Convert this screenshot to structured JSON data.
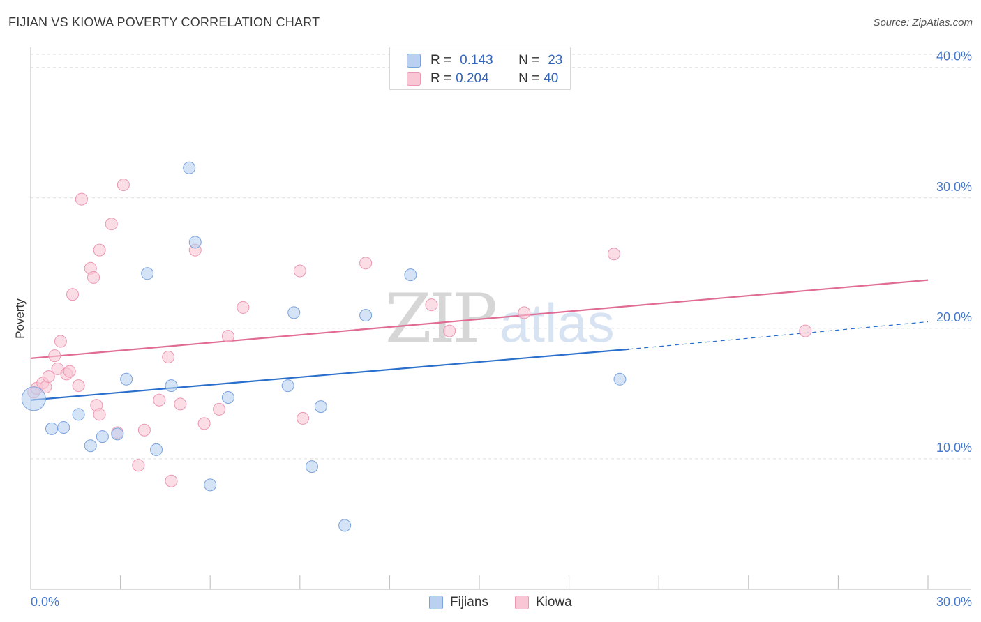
{
  "header": {
    "title": "FIJIAN VS KIOWA POVERTY CORRELATION CHART",
    "source": "Source: ZipAtlas.com"
  },
  "legend": {
    "rows": [
      {
        "r_label": "R =",
        "r_value": "0.143",
        "n_label": "N =",
        "n_value": "23"
      },
      {
        "r_label": "R =",
        "r_value": "0.204",
        "n_label": "N =",
        "n_value": "40"
      }
    ],
    "bottom": [
      "Fijians",
      "Kiowa"
    ]
  },
  "colors": {
    "fijians_fill": "#b9d0f0",
    "fijians_stroke": "#7aa3dd",
    "fijians_line": "#2a6fcc",
    "kiowa_fill": "#f8c6d4",
    "kiowa_stroke": "#ec97b1",
    "kiowa_line": "#e06b93",
    "grid": "#dddddd",
    "tick_text": "#4477cc"
  },
  "chart_data": {
    "type": "scatter",
    "title": "FIJIAN VS KIOWA POVERTY CORRELATION CHART",
    "xlabel": "",
    "ylabel": "Poverty",
    "xlim": [
      0,
      30
    ],
    "ylim": [
      0,
      41
    ],
    "x_tick_labels": [
      "0.0%",
      "30.0%"
    ],
    "y_ticks": [
      10,
      20,
      30,
      40
    ],
    "y_tick_labels": [
      "10.0%",
      "20.0%",
      "30.0%",
      "40.0%"
    ],
    "watermark": "ZIPatlas",
    "series": [
      {
        "name": "Fijians",
        "r": 0.143,
        "n": 23,
        "trend": {
          "x0": 0,
          "y0": 14.5,
          "x1": 20,
          "y1": 18.4,
          "dash_x1": 30,
          "dash_y1": 20.5
        },
        "points": [
          {
            "x": 0.1,
            "y": 14.6
          },
          {
            "x": 0.7,
            "y": 12.3
          },
          {
            "x": 1.1,
            "y": 12.4
          },
          {
            "x": 1.6,
            "y": 13.4
          },
          {
            "x": 2.0,
            "y": 11.0
          },
          {
            "x": 2.4,
            "y": 11.7
          },
          {
            "x": 2.9,
            "y": 11.9
          },
          {
            "x": 3.2,
            "y": 16.1
          },
          {
            "x": 3.9,
            "y": 24.2
          },
          {
            "x": 4.2,
            "y": 10.7
          },
          {
            "x": 4.7,
            "y": 15.6
          },
          {
            "x": 5.3,
            "y": 32.3
          },
          {
            "x": 5.5,
            "y": 26.6
          },
          {
            "x": 6.0,
            "y": 8.0
          },
          {
            "x": 6.6,
            "y": 14.7
          },
          {
            "x": 8.6,
            "y": 15.6
          },
          {
            "x": 8.8,
            "y": 21.2
          },
          {
            "x": 9.4,
            "y": 9.4
          },
          {
            "x": 9.7,
            "y": 14.0
          },
          {
            "x": 10.5,
            "y": 4.9
          },
          {
            "x": 11.2,
            "y": 21.0
          },
          {
            "x": 12.7,
            "y": 24.1
          },
          {
            "x": 19.7,
            "y": 16.1
          }
        ]
      },
      {
        "name": "Kiowa",
        "r": 0.204,
        "n": 40,
        "trend": {
          "x0": 0,
          "y0": 17.7,
          "x1": 30,
          "y1": 23.7
        },
        "points": [
          {
            "x": 0.1,
            "y": 15.1
          },
          {
            "x": 0.2,
            "y": 15.4
          },
          {
            "x": 0.4,
            "y": 15.8
          },
          {
            "x": 0.5,
            "y": 15.5
          },
          {
            "x": 0.6,
            "y": 16.3
          },
          {
            "x": 0.8,
            "y": 17.9
          },
          {
            "x": 0.9,
            "y": 16.9
          },
          {
            "x": 1.0,
            "y": 19.0
          },
          {
            "x": 1.2,
            "y": 16.5
          },
          {
            "x": 1.3,
            "y": 16.7
          },
          {
            "x": 1.4,
            "y": 22.6
          },
          {
            "x": 1.6,
            "y": 15.6
          },
          {
            "x": 1.7,
            "y": 29.9
          },
          {
            "x": 2.0,
            "y": 24.6
          },
          {
            "x": 2.1,
            "y": 23.9
          },
          {
            "x": 2.2,
            "y": 14.1
          },
          {
            "x": 2.3,
            "y": 26.0
          },
          {
            "x": 2.7,
            "y": 28.0
          },
          {
            "x": 2.9,
            "y": 12.0
          },
          {
            "x": 3.1,
            "y": 31.0
          },
          {
            "x": 3.6,
            "y": 9.5
          },
          {
            "x": 3.8,
            "y": 12.2
          },
          {
            "x": 4.6,
            "y": 17.8
          },
          {
            "x": 4.7,
            "y": 8.3
          },
          {
            "x": 4.3,
            "y": 14.5
          },
          {
            "x": 5.0,
            "y": 14.2
          },
          {
            "x": 5.5,
            "y": 26.0
          },
          {
            "x": 5.8,
            "y": 12.7
          },
          {
            "x": 6.3,
            "y": 13.8
          },
          {
            "x": 6.6,
            "y": 19.4
          },
          {
            "x": 7.1,
            "y": 21.6
          },
          {
            "x": 9.0,
            "y": 24.4
          },
          {
            "x": 9.1,
            "y": 13.1
          },
          {
            "x": 11.2,
            "y": 25.0
          },
          {
            "x": 13.4,
            "y": 21.8
          },
          {
            "x": 14.0,
            "y": 19.8
          },
          {
            "x": 16.5,
            "y": 21.2
          },
          {
            "x": 19.5,
            "y": 25.7
          },
          {
            "x": 25.9,
            "y": 19.8
          },
          {
            "x": 2.3,
            "y": 13.4
          }
        ]
      }
    ]
  }
}
